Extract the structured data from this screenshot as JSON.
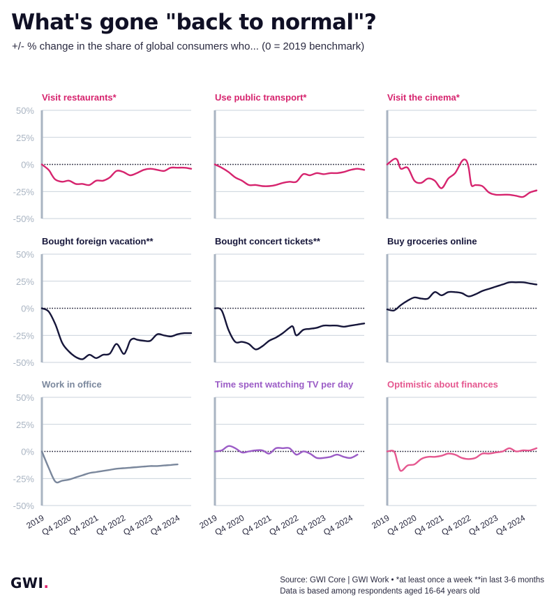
{
  "title": "What's gone \"back to normal\"?",
  "subtitle": "+/- % change in the share of global consumers who... (0 = 2019 benchmark)",
  "brand": {
    "logo_text": "GWI",
    "logo_dot": ".",
    "accent": "#e0236f"
  },
  "footer": {
    "line1": "Source: GWI Core | GWI Work • *at least once a week **in last 3-6 months",
    "line2": "Data is based among respondents aged 16-64 years old"
  },
  "chart_data": {
    "type": "line",
    "layout": "small-multiples 3x3",
    "ylim": [
      -50,
      50
    ],
    "yticks": [
      50,
      25,
      0,
      -25,
      -50
    ],
    "ytick_labels": [
      "50%",
      "25%",
      "0%",
      "-25%",
      "-50%"
    ],
    "baseline": 0,
    "xlim": [
      0,
      22
    ],
    "xtick_positions": [
      0,
      4,
      8,
      12,
      16,
      20
    ],
    "xtick_labels": [
      "2019",
      "Q4 2020",
      "Q4 2021",
      "Q4 2022",
      "Q4 2023",
      "Q4 2024"
    ],
    "panels": [
      {
        "title": "Visit restaurants*",
        "color": "#d6246e",
        "x": [
          0,
          1,
          1.5,
          2,
          3,
          4,
          5,
          6,
          7,
          8,
          9,
          10,
          11,
          12,
          13,
          14,
          15,
          16,
          17,
          18,
          19,
          20,
          21,
          22
        ],
        "values": [
          0,
          -5,
          -10,
          -14,
          -16,
          -15,
          -18,
          -18,
          -19,
          -15,
          -15,
          -12,
          -6,
          -7,
          -10,
          -8,
          -5,
          -4,
          -5,
          -6,
          -3,
          -3,
          -3,
          -4
        ]
      },
      {
        "title": "Use public transport*",
        "color": "#d6246e",
        "x": [
          0,
          1,
          2,
          3,
          4,
          5,
          6,
          7,
          8,
          9,
          10,
          11,
          12,
          13,
          14,
          15,
          16,
          17,
          18,
          19,
          20,
          21,
          22
        ],
        "values": [
          0,
          -3,
          -7,
          -12,
          -15,
          -19,
          -19,
          -20,
          -20,
          -19,
          -17,
          -16,
          -16,
          -9,
          -10,
          -8,
          -9,
          -8,
          -8,
          -7,
          -5,
          -4,
          -5
        ]
      },
      {
        "title": "Visit the cinema*",
        "color": "#d6246e",
        "x": [
          0,
          1,
          1.5,
          2,
          3,
          4,
          5,
          6,
          7,
          8,
          9,
          10,
          11,
          11.6,
          12,
          12.4,
          13,
          14,
          15,
          16,
          17,
          18,
          19,
          20,
          21,
          22
        ],
        "values": [
          0,
          5,
          4,
          -4,
          -3,
          -15,
          -17,
          -13,
          -15,
          -22,
          -13,
          -8,
          3,
          4,
          -3,
          -19,
          -19,
          -20,
          -26,
          -28,
          -28,
          -28,
          -29,
          -30,
          -26,
          -24
        ]
      },
      {
        "title": "Bought foreign vacation**",
        "color": "#16163a",
        "x": [
          0,
          1,
          2,
          3,
          4,
          5,
          6,
          7,
          8,
          9,
          10,
          11,
          12,
          12.5,
          13,
          13.5,
          14,
          15,
          16,
          17,
          18,
          19,
          20,
          21,
          22
        ],
        "values": [
          0,
          -3,
          -15,
          -32,
          -40,
          -45,
          -47,
          -43,
          -46,
          -43,
          -42,
          -33,
          -42,
          -38,
          -30,
          -28,
          -29,
          -30,
          -30,
          -24,
          -25,
          -26,
          -24,
          -23,
          -23
        ]
      },
      {
        "title": "Bought concert tickets**",
        "color": "#16163a",
        "x": [
          0,
          1,
          2,
          3,
          4,
          5,
          6,
          7,
          8,
          9,
          10,
          11,
          11.5,
          12,
          13,
          14,
          15,
          16,
          17,
          18,
          19,
          20,
          21,
          22
        ],
        "values": [
          0,
          -2,
          -20,
          -31,
          -31,
          -33,
          -38,
          -35,
          -30,
          -27,
          -23,
          -18,
          -17,
          -25,
          -20,
          -19,
          -18,
          -16,
          -16,
          -16,
          -17,
          -16,
          -15,
          -14
        ]
      },
      {
        "title": "Buy groceries online",
        "color": "#16163a",
        "x": [
          0,
          1,
          2,
          3,
          4,
          5,
          6,
          7,
          8,
          9,
          10,
          11,
          12,
          13,
          14,
          15,
          16,
          17,
          18,
          19,
          20,
          21,
          22
        ],
        "values": [
          -1,
          -2,
          3,
          7,
          10,
          9,
          9,
          15,
          12,
          15,
          15,
          14,
          11,
          13,
          16,
          18,
          20,
          22,
          24,
          24,
          24,
          23,
          22
        ]
      },
      {
        "title": "Work in office",
        "color": "#7a879c",
        "x": [
          0,
          1,
          2,
          3,
          4,
          5,
          6,
          7,
          8,
          9,
          10,
          11,
          12,
          13,
          14,
          15,
          16,
          17,
          18,
          19,
          20
        ],
        "values": [
          0,
          -15,
          -28,
          -27,
          -26,
          -24,
          -22,
          -20,
          -19,
          -18,
          -17,
          -16,
          -15.5,
          -15,
          -14.5,
          -14,
          -13.5,
          -13.5,
          -13,
          -12.5,
          -12
        ]
      },
      {
        "title": "Time spent watching TV per day",
        "color": "#9b5cc6",
        "x": [
          0,
          1,
          2,
          3,
          4,
          5,
          6,
          7,
          8,
          9,
          10,
          11,
          12,
          13,
          14,
          15,
          16,
          17,
          18,
          19,
          20,
          21
        ],
        "values": [
          0,
          1,
          5,
          3,
          -1,
          0,
          1,
          1,
          -2,
          3,
          3,
          3,
          -3,
          0,
          -2,
          -6,
          -6,
          -5,
          -3,
          -5,
          -6,
          -3
        ]
      },
      {
        "title": "Optimistic about finances",
        "color": "#e5578f",
        "x": [
          0,
          1,
          1.5,
          2,
          3,
          4,
          5,
          6,
          7,
          8,
          9,
          10,
          11,
          12,
          13,
          14,
          15,
          16,
          17,
          18,
          19,
          20,
          21,
          22
        ],
        "values": [
          0,
          0,
          -10,
          -18,
          -13,
          -12,
          -7,
          -5,
          -5,
          -4,
          -2,
          -3,
          -6,
          -7,
          -6,
          -2,
          -2,
          -1,
          0,
          3,
          0,
          1,
          1,
          3
        ]
      }
    ]
  }
}
